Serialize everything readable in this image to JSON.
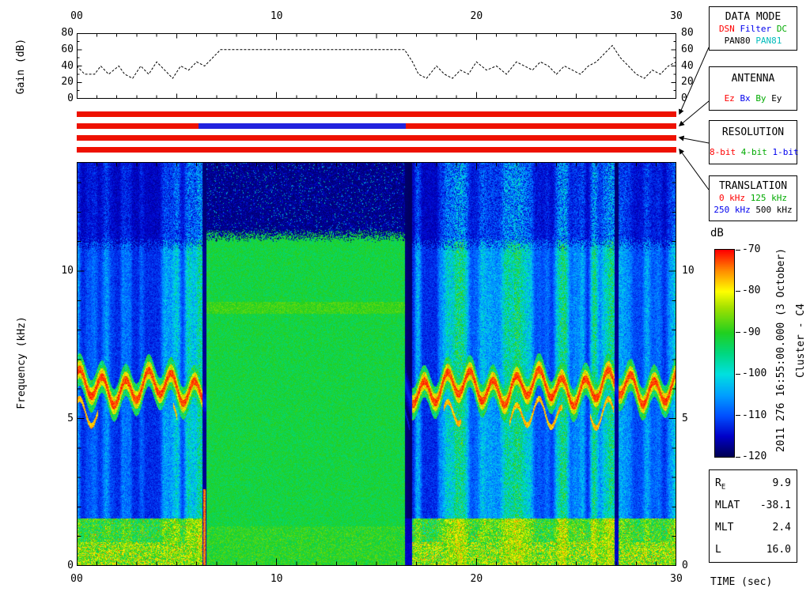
{
  "title_texts": {
    "time_axis_label": "TIME (sec)",
    "timestamp": "2011 276 16:55:00.000 (3 October)",
    "spacecraft": "Cluster - C4"
  },
  "gain_plot": {
    "ylabel": "Gain (dB)",
    "x_tick_labels": [
      "00",
      "10",
      "20",
      "30"
    ],
    "x_tick_values": [
      0,
      10,
      20,
      30
    ],
    "y_tick_labels": [
      "0",
      "20",
      "40",
      "60",
      "80"
    ],
    "y_tick_values": [
      0,
      20,
      40,
      60,
      80
    ],
    "x_range": [
      0,
      30
    ],
    "y_range": [
      0,
      80
    ]
  },
  "spectrogram": {
    "ylabel": "Frequency (kHz)",
    "x_tick_labels": [
      "00",
      "10",
      "20",
      "30"
    ],
    "x_tick_values": [
      0,
      10,
      20,
      30
    ],
    "y_tick_labels": [
      "0",
      "5",
      "10"
    ],
    "y_tick_values": [
      0,
      5,
      10
    ],
    "x_range": [
      0,
      30
    ],
    "y_range": [
      0,
      13.7
    ]
  },
  "status_bars": {
    "bars": [
      {
        "name": "data-mode-bar",
        "segments": [
          {
            "from": 0,
            "to": 30,
            "color": "#ee1100"
          }
        ]
      },
      {
        "name": "antenna-bar",
        "segments": [
          {
            "from": 0,
            "to": 6.1,
            "color": "#ee1100"
          },
          {
            "from": 6.1,
            "to": 16.45,
            "color": "#2222dd"
          },
          {
            "from": 16.45,
            "to": 30,
            "color": "#ee1100"
          }
        ]
      },
      {
        "name": "resolution-bar",
        "segments": [
          {
            "from": 0,
            "to": 30,
            "color": "#ee1100"
          }
        ]
      },
      {
        "name": "translation-bar",
        "segments": [
          {
            "from": 0,
            "to": 30,
            "color": "#ee1100"
          }
        ]
      }
    ]
  },
  "legend_boxes": [
    {
      "key": "data-mode",
      "title": "DATA MODE",
      "rows": [
        [
          {
            "t": "DSN",
            "c": "#ff0000"
          },
          {
            "t": "Filter",
            "c": "#0000ee"
          },
          {
            "t": "DC",
            "c": "#00aa00"
          }
        ],
        [
          {
            "t": "PAN80",
            "c": "#000000"
          },
          {
            "t": "PAN81",
            "c": "#00bbbb"
          }
        ]
      ]
    },
    {
      "key": "antenna",
      "title": "ANTENNA",
      "rows": [
        [
          {
            "t": "Ez",
            "c": "#ff0000"
          },
          {
            "t": "Bx",
            "c": "#0000ee"
          },
          {
            "t": "By",
            "c": "#00aa00"
          },
          {
            "t": "Ey",
            "c": "#000000"
          }
        ]
      ]
    },
    {
      "key": "resolution",
      "title": "RESOLUTION",
      "rows": [
        [
          {
            "t": "8-bit",
            "c": "#ff0000"
          },
          {
            "t": "4-bit",
            "c": "#00aa00"
          },
          {
            "t": "1-bit",
            "c": "#0000ee"
          }
        ]
      ]
    },
    {
      "key": "translation",
      "title": "TRANSLATION",
      "rows": [
        [
          {
            "t": "0 kHz",
            "c": "#ff0000"
          },
          {
            "t": "125 kHz",
            "c": "#00aa00"
          }
        ],
        [
          {
            "t": "250 kHz",
            "c": "#0000ee"
          },
          {
            "t": "500 kHz",
            "c": "#000000"
          }
        ]
      ]
    }
  ],
  "colorbar": {
    "title": "dB",
    "tick_labels": [
      "-70",
      "-80",
      "-90",
      "-100",
      "-110",
      "-120"
    ],
    "tick_values": [
      -70,
      -80,
      -90,
      -100,
      -110,
      -120
    ],
    "range_db": [
      -120,
      -70
    ]
  },
  "params_box": {
    "rows": [
      {
        "label": "R",
        "sub": "E",
        "value": "9.9"
      },
      {
        "label": "MLAT",
        "sub": "",
        "value": "-38.1"
      },
      {
        "label": "MLT",
        "sub": "",
        "value": "2.4"
      },
      {
        "label": "L",
        "sub": "",
        "value": "16.0"
      }
    ]
  },
  "chart_data": [
    {
      "type": "line",
      "title": "Receiver gain vs time",
      "xlabel": "TIME (sec)",
      "ylabel": "Gain (dB)",
      "xlim": [
        0,
        30
      ],
      "ylim": [
        0,
        80
      ],
      "line_style": "dashed",
      "color": "#000000",
      "x": [
        0,
        0.4,
        0.9,
        1.2,
        1.6,
        2.1,
        2.4,
        2.8,
        3.2,
        3.6,
        4.0,
        4.4,
        4.8,
        5.2,
        5.6,
        6.0,
        6.4,
        6.8,
        7.2,
        16.4,
        16.8,
        17.1,
        17.5,
        18.0,
        18.4,
        18.8,
        19.2,
        19.6,
        20.0,
        20.5,
        21.0,
        21.5,
        22.0,
        22.4,
        22.8,
        23.2,
        23.6,
        24.0,
        24.4,
        24.8,
        25.2,
        25.6,
        26.0,
        26.4,
        26.8,
        27.2,
        27.6,
        28.0,
        28.4,
        28.8,
        29.2,
        29.6,
        30
      ],
      "y": [
        40,
        30,
        30,
        40,
        30,
        40,
        30,
        25,
        40,
        30,
        45,
        35,
        25,
        40,
        35,
        45,
        40,
        50,
        60,
        60,
        45,
        30,
        25,
        40,
        30,
        25,
        35,
        30,
        45,
        35,
        40,
        30,
        45,
        40,
        35,
        45,
        40,
        30,
        40,
        35,
        30,
        40,
        45,
        55,
        65,
        50,
        40,
        30,
        25,
        35,
        30,
        40,
        45
      ]
    },
    {
      "type": "heatmap",
      "title": "Cluster C4 WBD spectrogram starting 2011 276 16:55:00.000 (3 October)",
      "xlabel": "TIME (sec)",
      "ylabel": "Frequency (kHz)",
      "xlim": [
        0,
        30
      ],
      "ylim": [
        0,
        13.7
      ],
      "value_axis": {
        "label": "dB",
        "min": -120,
        "max": -70
      },
      "colormap": {
        "stops": [
          [
            0,
            "#000050"
          ],
          [
            0.1,
            "#0000c8"
          ],
          [
            0.2,
            "#0050ff"
          ],
          [
            0.3,
            "#00a0ff"
          ],
          [
            0.4,
            "#00e0e0"
          ],
          [
            0.5,
            "#00d880"
          ],
          [
            0.6,
            "#20d020"
          ],
          [
            0.72,
            "#a0e000"
          ],
          [
            0.8,
            "#ffff00"
          ],
          [
            0.9,
            "#ff8c00"
          ],
          [
            1,
            "#ff0000"
          ]
        ]
      },
      "features": {
        "burst_interval_sec": [
          6.5,
          16.42
        ],
        "burst_background_db": [
          -92,
          -90
        ],
        "burst_upper_cutoff_khz": 11.2,
        "above_cutoff_db": -118,
        "emission_band": {
          "center_khz": 6.05,
          "amplitude_khz": 0.42,
          "period_sec": 1.15,
          "peak_db": -72
        },
        "low_freq_band": {
          "below_khz": 1.6,
          "db_range": [
            -99,
            -78
          ]
        },
        "background_db_range": [
          -118,
          -96
        ],
        "vertical_striping_period_sec": 1.0,
        "dark_columns_sec": [
          [
            6.3,
            6.5
          ],
          [
            16.42,
            16.78
          ],
          [
            26.9,
            27.1
          ]
        ],
        "red_edge_sec": [
          6.32,
          6.46
        ]
      }
    }
  ]
}
